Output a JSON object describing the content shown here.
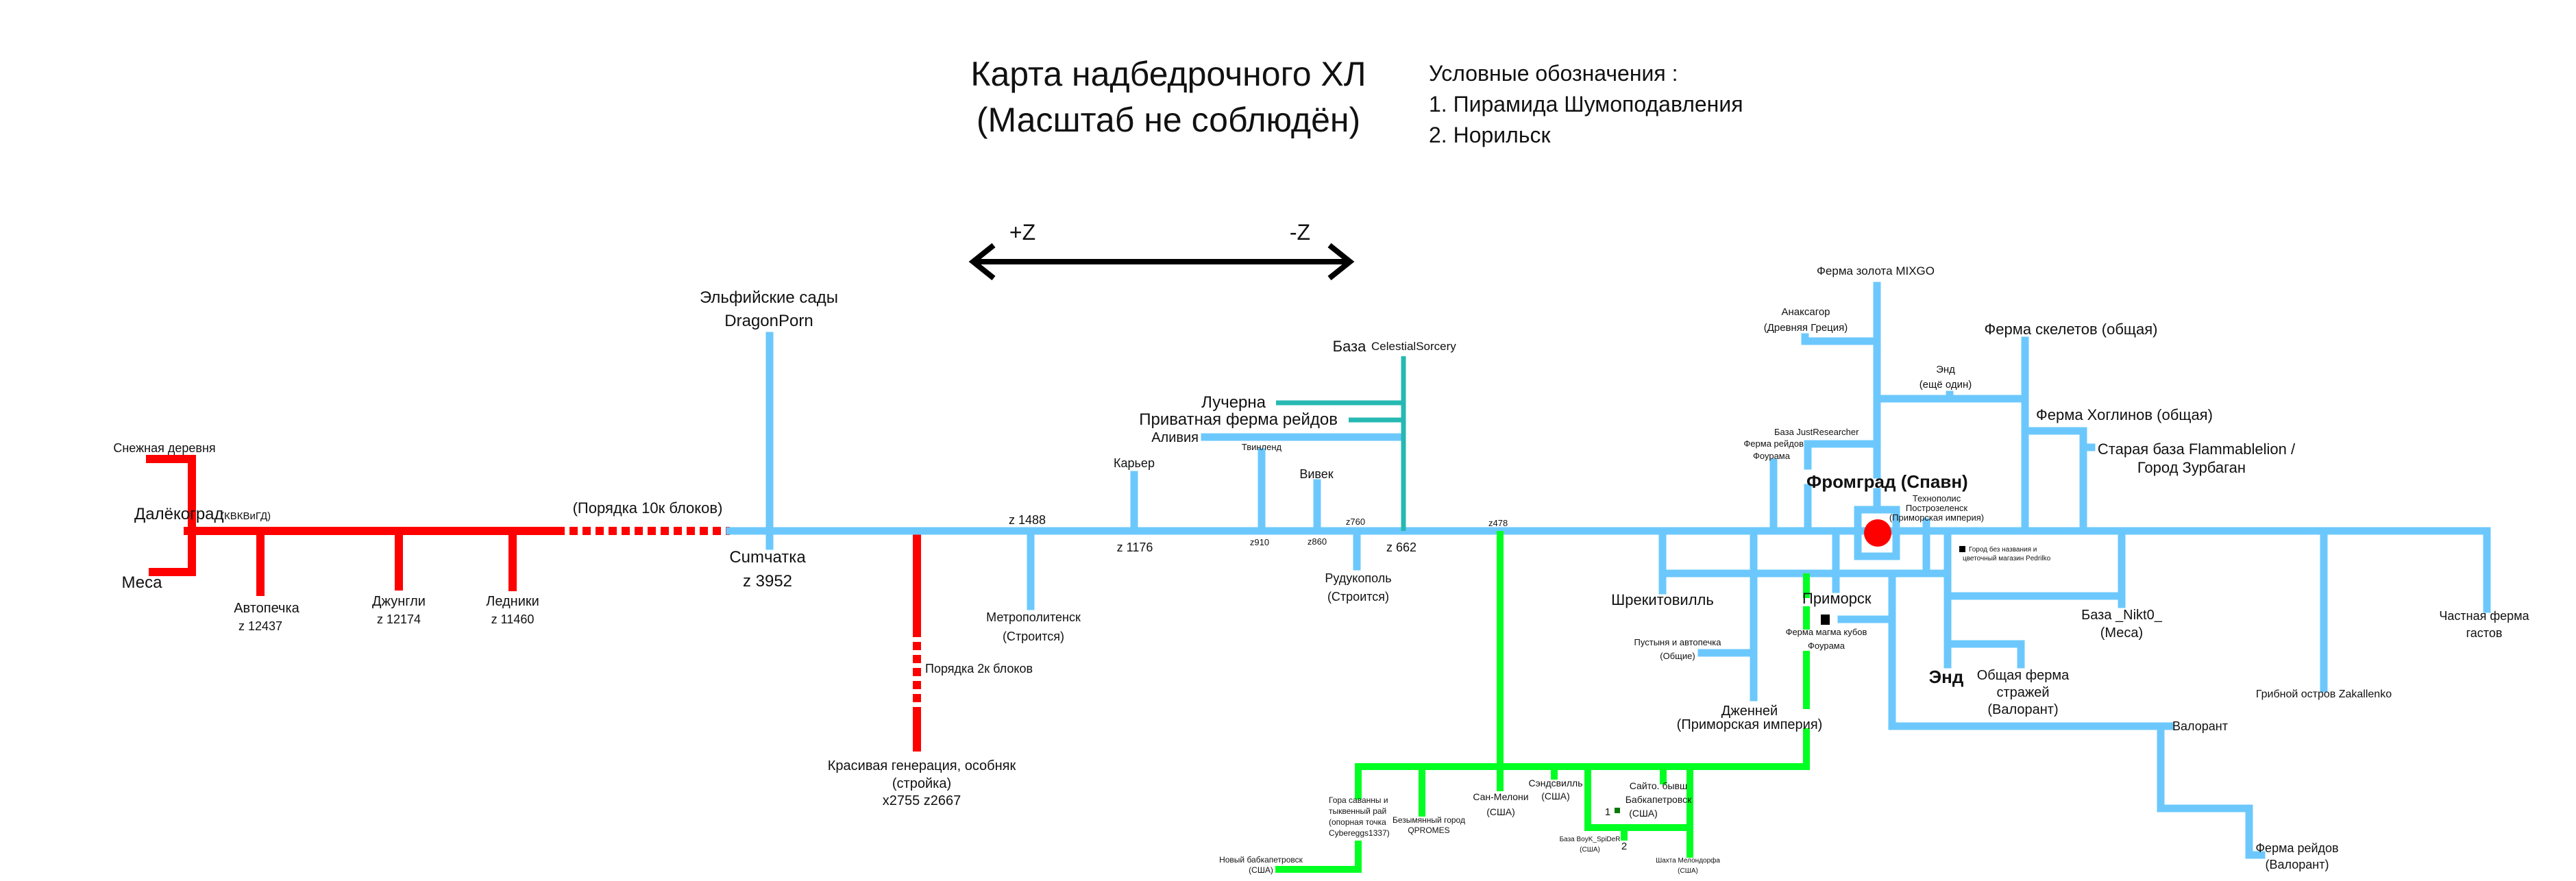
{
  "title": {
    "line1": "Карта надбедрочного ХЛ",
    "line2": "(Масштаб не соблюдён)"
  },
  "legend": {
    "heading": "Условные обозначения :",
    "items": [
      "1. Пирамида Шумоподавления",
      "2. Норильск"
    ]
  },
  "axis": {
    "plus": "+Z",
    "minus": "-Z"
  },
  "colors": {
    "main_line": "#6cc8fc",
    "far_line": "#ff0000",
    "usa_line": "#00ff22",
    "celestial_line": "#27b8b2",
    "spawn": "#ff0000"
  },
  "labels": {
    "snow": "Снежная деревня",
    "dalekograd": "Далёкоград",
    "dalekograd_suffix": "(КВКВиГД)",
    "mesa": "Меса",
    "autopechka": [
      "Автопечка",
      "z 12437"
    ],
    "jungle": [
      "Джунгли",
      "z 12174"
    ],
    "glaciers": [
      "Ледники",
      "z 11460"
    ],
    "order10k": "(Порядка 10к блоков)",
    "elf": [
      "Эльфийские сады",
      "DragonPorn"
    ],
    "cumchatka": [
      "Cumчатка",
      "z 3952"
    ],
    "z1488": "z 1488",
    "metro": [
      "Метрополитенск",
      "(Строится)"
    ],
    "order2k": "Порядка 2к блоков",
    "krasivaya": [
      "Красивая генерация, особняк",
      "(стройка)",
      "x2755 z2667"
    ],
    "quarry": "Карьер",
    "z1176": "z 1176",
    "twinland": "Твинленд",
    "z910": "z910",
    "vivek": "Вивек",
    "z860": "z860",
    "z760": "z760",
    "z662": "z 662",
    "rudukopol": [
      "Рудукополь",
      "(Строится)"
    ],
    "celestial": [
      "База",
      "CelestialSorcery"
    ],
    "lucherna": "Лучерна",
    "private_raid": "Приватная ферма рейдов",
    "alivia": "Аливия",
    "z478": "z478",
    "mixgo": "Ферма золота MIXGO",
    "anaxagor": [
      "Анаксагор",
      "(Древняя Греция)"
    ],
    "skeletons": "Ферма скелетов (общая)",
    "end2": [
      "Энд",
      "(ещё один)"
    ],
    "hoglins": "Ферма Хоглинов (общая)",
    "flammable": [
      "Старая база Flammablelion /",
      "Город Зурбаган"
    ],
    "justresearcher": "База JustResearcher",
    "foorama_raid": [
      "Ферма рейдов",
      "Фоурама"
    ],
    "fromgrad": "Фромград  (Спавн)",
    "technopolis": [
      "Технополис",
      "Построзеленск",
      "(Приморская империя)"
    ],
    "noname": [
      "Город без названия и",
      "цветочный магазин Pedrilko"
    ],
    "shrek": "Шрекитовилль",
    "primorsk": "Приморск",
    "magma": [
      "Ферма магма кубов",
      "Фоурама"
    ],
    "desert": [
      "Пустыня и автопечка",
      "(Общие)"
    ],
    "jenney": [
      "Дженней",
      "(Приморская империя)"
    ],
    "end": "Энд",
    "guards": [
      "Общая ферма",
      "стражей",
      "(Валорант)"
    ],
    "nikt0": [
      "База _Nikt0_",
      "(Меса)"
    ],
    "mushroom": "Грибной остров Zakallenko",
    "gast": [
      "Частная ферма",
      "гастов"
    ],
    "valorant": "Валорант",
    "raid_valorant": [
      "Ферма рейдов",
      "(Валорант)"
    ],
    "gora": [
      "Гора саванны и",
      "тыквенный рай",
      "(опорная точка",
      "Cybereggs1337)"
    ],
    "novy": [
      "Новый бабкапетровск",
      "(США)"
    ],
    "bezym": [
      "Безымянный город",
      "QPROMES"
    ],
    "sanmeloni": [
      "Сан-Мелони",
      "(США)"
    ],
    "sandsville": [
      "Сэндсвилль",
      "(США)"
    ],
    "saito": [
      "Сайто. бывш",
      "Бабкапетровск",
      "(США)"
    ],
    "mark1": "1",
    "mark2": "2",
    "boyk": [
      "База BoyK_SpiDeR",
      "(США)"
    ],
    "shahta": [
      "Шахта Мелондорфа",
      "(США)"
    ]
  }
}
